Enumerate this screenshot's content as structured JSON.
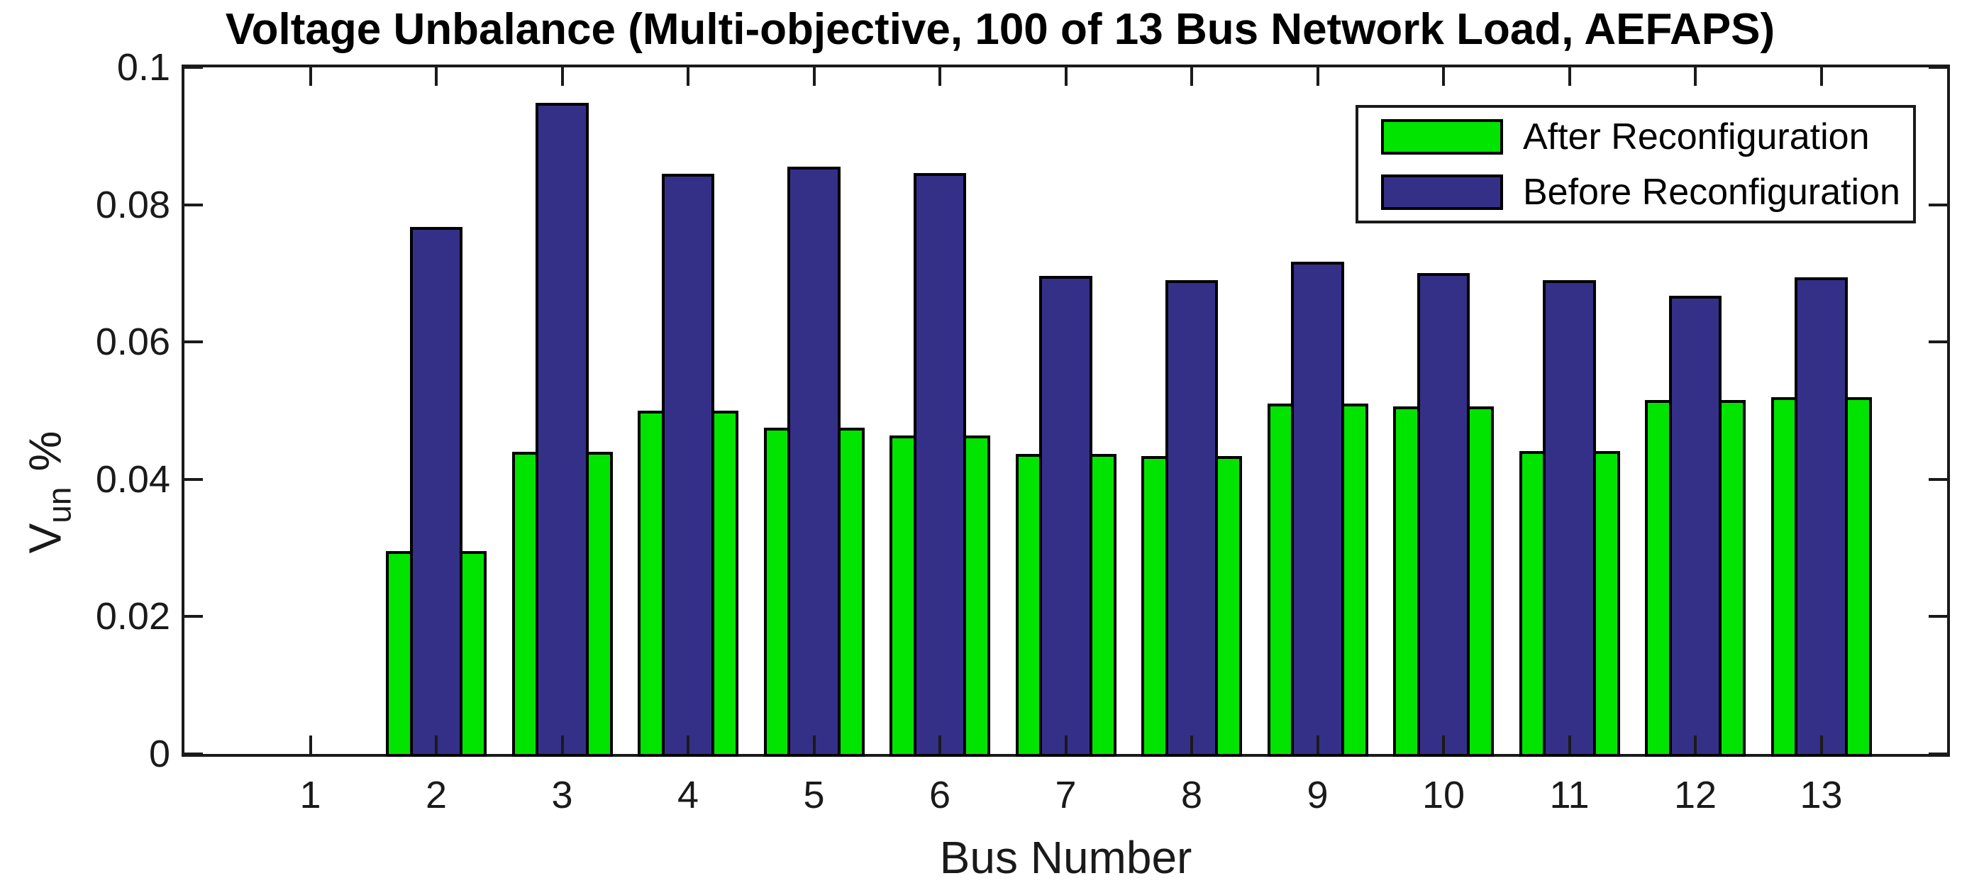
{
  "title": "Voltage Unbalance (Multi-objective, 100 of 13 Bus Network Load, AEFAPS)",
  "chart_data": {
    "type": "bar",
    "categories": [
      1,
      2,
      3,
      4,
      5,
      6,
      7,
      8,
      9,
      10,
      11,
      12,
      13
    ],
    "series": [
      {
        "name": "After Reconfiguration",
        "color": "#00E400",
        "bar_width_units": 0.8,
        "values": [
          0,
          0.0295,
          0.044,
          0.05,
          0.0475,
          0.0464,
          0.0437,
          0.0434,
          0.051,
          0.0506,
          0.0441,
          0.0516,
          0.052
        ]
      },
      {
        "name": "Before Reconfiguration",
        "color": "#343088",
        "bar_width_units": 0.42,
        "values": [
          0,
          0.0768,
          0.0948,
          0.0845,
          0.0855,
          0.0846,
          0.0696,
          0.069,
          0.0717,
          0.07,
          0.069,
          0.0667,
          0.0694
        ]
      }
    ],
    "title": "Voltage Unbalance (Multi-objective, 100 of 13 Bus Network Load, AEFAPS)",
    "xlabel": "Bus Number",
    "ylabel": "V_un %",
    "ylabel_parts": {
      "main": "V",
      "sub": "un",
      "suffix": "%"
    },
    "xlim": [
      0,
      14
    ],
    "ylim": [
      0,
      0.1
    ],
    "yticks": [
      0,
      0.02,
      0.04,
      0.06,
      0.08,
      0.1
    ],
    "ytick_labels": [
      "0",
      "0.02",
      "0.04",
      "0.06",
      "0.08",
      "0.1"
    ],
    "grid": false,
    "legend_position": "top-right",
    "bar_style": "overlaid-centered",
    "axis_color": "#1a1a1a",
    "edge_color": "#000000",
    "background_color": "#ffffff"
  },
  "legend": {
    "items": [
      {
        "label": "After Reconfiguration",
        "color": "#00E400"
      },
      {
        "label": "Before Reconfiguration",
        "color": "#343088"
      }
    ]
  }
}
